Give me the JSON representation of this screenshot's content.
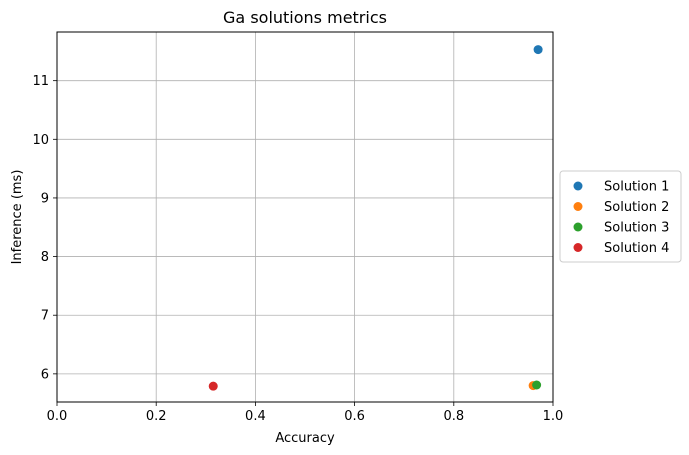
{
  "chart_data": {
    "type": "scatter",
    "title": "Ga solutions metrics",
    "xlabel": "Accuracy",
    "ylabel": "Inference (ms)",
    "xlim": [
      0.0,
      1.0
    ],
    "ylim": [
      5.52,
      11.83
    ],
    "xticks": [
      0.0,
      0.2,
      0.4,
      0.6,
      0.8,
      1.0
    ],
    "xtick_labels": [
      "0.0",
      "0.2",
      "0.4",
      "0.6",
      "0.8",
      "1.0"
    ],
    "yticks": [
      6,
      7,
      8,
      9,
      10,
      11
    ],
    "ytick_labels": [
      "6",
      "7",
      "8",
      "9",
      "10",
      "11"
    ],
    "grid": true,
    "legend_position": "outside-right",
    "series": [
      {
        "name": "Solution 1",
        "color": "#1f77b4",
        "points": [
          [
            0.97,
            11.53
          ]
        ]
      },
      {
        "name": "Solution 2",
        "color": "#ff7f0e",
        "points": [
          [
            0.96,
            5.8
          ]
        ]
      },
      {
        "name": "Solution 3",
        "color": "#2ca02c",
        "points": [
          [
            0.967,
            5.81
          ]
        ]
      },
      {
        "name": "Solution 4",
        "color": "#d62728",
        "points": [
          [
            0.315,
            5.79
          ]
        ]
      }
    ]
  }
}
